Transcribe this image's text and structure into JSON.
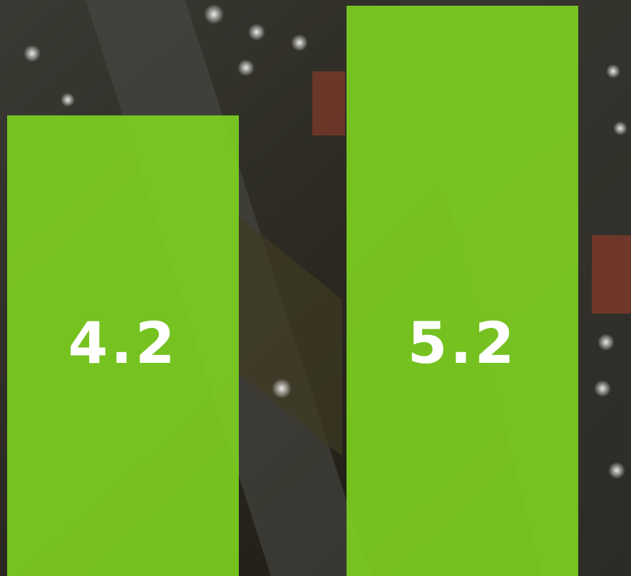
{
  "chart_data": {
    "type": "bar",
    "values": [
      4.2,
      5.2
    ],
    "color": "#7ed321"
  }
}
